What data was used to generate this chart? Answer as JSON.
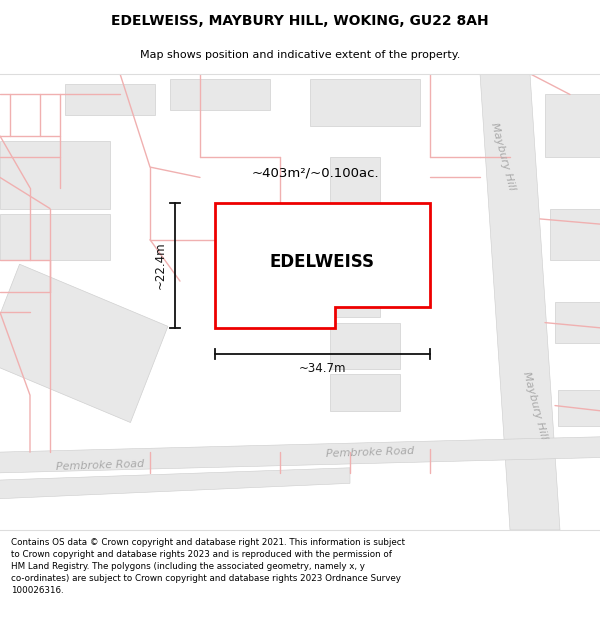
{
  "title": "EDELWEISS, MAYBURY HILL, WOKING, GU22 8AH",
  "subtitle": "Map shows position and indicative extent of the property.",
  "footer": "Contains OS data © Crown copyright and database right 2021. This information is subject to Crown copyright and database rights 2023 and is reproduced with the permission of HM Land Registry. The polygons (including the associated geometry, namely x, y co-ordinates) are subject to Crown copyright and database rights 2023 Ordnance Survey 100026316.",
  "background_color": "#f9f7f7",
  "building_fill": "#e8e8e8",
  "building_stroke": "#d0d0d0",
  "road_fill": "#e8e8e8",
  "road_stroke": "#cccccc",
  "pink": "#f0b0b0",
  "plot_color": "#ee0000",
  "plot_fill": "#ffffff",
  "area_text": "~403m²/~0.100ac.",
  "property_name": "EDELWEISS",
  "dim_width": "~34.7m",
  "dim_height": "~22.4m",
  "road_label_color": "#aaaaaa",
  "annotation_color": "#111111",
  "title_fontsize": 10,
  "subtitle_fontsize": 8,
  "footer_fontsize": 6.3
}
